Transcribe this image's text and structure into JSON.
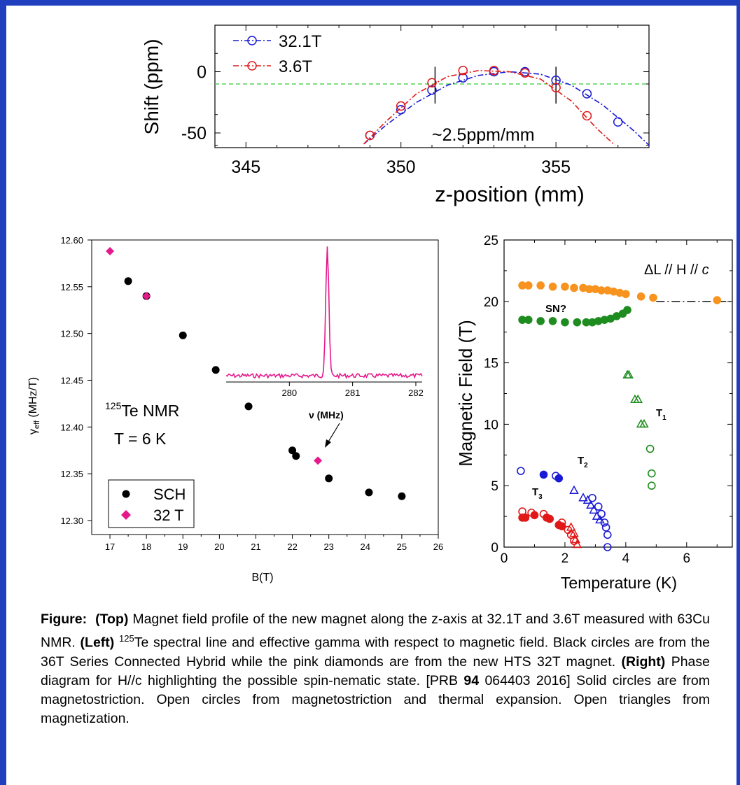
{
  "chart_data": [
    {
      "id": "top",
      "type": "line",
      "xlabel": "z-position (mm)",
      "ylabel": "Shift (ppm)",
      "xlim": [
        344,
        358
      ],
      "ylim": [
        -62,
        38
      ],
      "xticks": [
        345,
        350,
        355
      ],
      "yticks": [
        0,
        -50
      ],
      "reference_line": -10,
      "annotation": "~2.5ppm/mm",
      "gap_markers_x": [
        351.1,
        355.0
      ],
      "series": [
        {
          "name": "32.1T",
          "color": "#1a1ad6",
          "points": [
            [
              349,
              -52
            ],
            [
              350,
              -31
            ],
            [
              351,
              -15
            ],
            [
              352,
              -5
            ],
            [
              353,
              0
            ],
            [
              354,
              0
            ],
            [
              355,
              -7
            ],
            [
              356,
              -18
            ],
            [
              357,
              -41
            ]
          ],
          "fit": [
            [
              348.8,
              -59
            ],
            [
              349.5,
              -44
            ],
            [
              350.5,
              -25
            ],
            [
              351.5,
              -11
            ],
            [
              352.5,
              -3
            ],
            [
              353.5,
              0
            ],
            [
              354.5,
              -2
            ],
            [
              355.5,
              -11
            ],
            [
              356.5,
              -27
            ],
            [
              357.5,
              -48
            ],
            [
              358,
              -60
            ]
          ]
        },
        {
          "name": "3.6T",
          "color": "#e01818",
          "points": [
            [
              349,
              -52
            ],
            [
              350,
              -28
            ],
            [
              351,
              -9
            ],
            [
              352,
              1
            ],
            [
              353,
              1
            ],
            [
              354,
              -1
            ],
            [
              355,
              -13
            ],
            [
              356,
              -36
            ]
          ],
          "fit": [
            [
              348.8,
              -59
            ],
            [
              349.5,
              -41
            ],
            [
              350.5,
              -18
            ],
            [
              351.5,
              -4
            ],
            [
              352.5,
              1
            ],
            [
              353.5,
              0
            ],
            [
              354.5,
              -6
            ],
            [
              355.5,
              -24
            ],
            [
              356.3,
              -46
            ],
            [
              356.9,
              -60
            ]
          ]
        }
      ]
    },
    {
      "id": "left",
      "type": "scatter",
      "xlabel": "B(T)",
      "ylabel_main": "γ",
      "ylabel_sub": "eff",
      "ylabel_unit": " (MHz/T)",
      "xlim": [
        16.5,
        26
      ],
      "ylim": [
        12.285,
        12.6
      ],
      "xticks": [
        "17",
        "18",
        "19",
        "20",
        "21",
        "22",
        "23",
        "24",
        "25",
        "26"
      ],
      "yticks": [
        "12.30",
        "12.35",
        "12.40",
        "12.45",
        "12.50",
        "12.55",
        "12.60"
      ],
      "series": [
        {
          "name": "SCH",
          "marker": "circle",
          "color": "#000000",
          "points": [
            [
              17.5,
              12.556
            ],
            [
              18.0,
              12.54
            ],
            [
              19.0,
              12.498
            ],
            [
              19.9,
              12.461
            ],
            [
              20.8,
              12.422
            ],
            [
              22.0,
              12.375
            ],
            [
              22.1,
              12.369
            ],
            [
              23.0,
              12.345
            ],
            [
              24.1,
              12.33
            ],
            [
              25.0,
              12.326
            ]
          ]
        },
        {
          "name": "32 T",
          "marker": "diamond",
          "color": "#e6198c",
          "points": [
            [
              17.0,
              12.588
            ],
            [
              18.0,
              12.54
            ],
            [
              22.7,
              12.364
            ]
          ]
        }
      ],
      "text_label": {
        "superscript": "125",
        "line1": "Te NMR",
        "line2": "T = 6 K"
      },
      "inset": {
        "xlabel": "ν (MHz)",
        "xlim": [
          279,
          282.1
        ],
        "xticks": [
          "280",
          "281",
          "282"
        ],
        "peak_center": 280.6,
        "color": "#e6198c"
      }
    },
    {
      "id": "right",
      "type": "scatter",
      "xlabel": "Temperature (K)",
      "ylabel": "Magnetic Field (T)",
      "xlim": [
        0,
        7.5
      ],
      "ylim": [
        0,
        25
      ],
      "xticks": [
        "0",
        "2",
        "4",
        "6"
      ],
      "yticks": [
        "0",
        "5",
        "10",
        "15",
        "20",
        "25"
      ],
      "title_parts": {
        "prefix": "ΔL // H // ",
        "italic": "c"
      },
      "labels": {
        "sn": "SN?",
        "t1": "T",
        "t1_sub": "1",
        "t2": "T",
        "t2_sub": "2",
        "t3": "T",
        "t3_sub": "3"
      },
      "series": [
        {
          "name": "orange solid",
          "marker": "circle",
          "fill": true,
          "color": "#f7931e",
          "points": [
            [
              0.6,
              21.3
            ],
            [
              0.8,
              21.3
            ],
            [
              1.2,
              21.3
            ],
            [
              1.6,
              21.2
            ],
            [
              2.0,
              21.2
            ],
            [
              2.3,
              21.1
            ],
            [
              2.6,
              21.1
            ],
            [
              2.8,
              21.0
            ],
            [
              3.0,
              21.0
            ],
            [
              3.2,
              20.9
            ],
            [
              3.4,
              20.9
            ],
            [
              3.6,
              20.8
            ],
            [
              3.8,
              20.7
            ],
            [
              4.0,
              20.6
            ],
            [
              4.5,
              20.4
            ],
            [
              4.9,
              20.3
            ],
            [
              7.0,
              20.1
            ]
          ]
        },
        {
          "name": "green solid",
          "marker": "circle",
          "fill": true,
          "color": "#1e8c1e",
          "points": [
            [
              0.6,
              18.5
            ],
            [
              0.8,
              18.5
            ],
            [
              1.2,
              18.4
            ],
            [
              1.6,
              18.4
            ],
            [
              2.0,
              18.3
            ],
            [
              2.4,
              18.3
            ],
            [
              2.7,
              18.3
            ],
            [
              2.9,
              18.3
            ],
            [
              3.1,
              18.4
            ],
            [
              3.3,
              18.5
            ],
            [
              3.5,
              18.6
            ],
            [
              3.7,
              18.8
            ],
            [
              3.9,
              19.0
            ],
            [
              4.05,
              19.3
            ]
          ]
        },
        {
          "name": "green open circles",
          "marker": "circle",
          "fill": false,
          "color": "#1e8c1e",
          "points": [
            [
              4.8,
              8.0
            ],
            [
              4.85,
              6.0
            ],
            [
              4.85,
              5.0
            ]
          ]
        },
        {
          "name": "green open triangles",
          "marker": "triangle",
          "fill": false,
          "color": "#1e8c1e",
          "points": [
            [
              4.05,
              14
            ],
            [
              4.1,
              14
            ],
            [
              4.3,
              12
            ],
            [
              4.4,
              12
            ],
            [
              4.5,
              10
            ],
            [
              4.6,
              10
            ]
          ]
        },
        {
          "name": "blue solid",
          "marker": "circle",
          "fill": true,
          "color": "#1a1ad6",
          "points": [
            [
              1.3,
              5.9
            ],
            [
              1.8,
              5.6
            ]
          ]
        },
        {
          "name": "blue open circles",
          "marker": "circle",
          "fill": false,
          "color": "#1a1ad6",
          "points": [
            [
              0.55,
              6.2
            ],
            [
              1.7,
              5.8
            ],
            [
              2.9,
              4.0
            ],
            [
              3.1,
              3.3
            ],
            [
              3.2,
              2.7
            ],
            [
              3.3,
              2.0
            ],
            [
              3.35,
              1.6
            ],
            [
              3.4,
              1.0
            ],
            [
              3.4,
              0
            ]
          ]
        },
        {
          "name": "blue open triangles",
          "marker": "triangle",
          "fill": false,
          "color": "#1a1ad6",
          "points": [
            [
              2.3,
              4.6
            ],
            [
              2.6,
              4.0
            ],
            [
              2.75,
              3.8
            ],
            [
              2.85,
              3.4
            ],
            [
              2.95,
              3.0
            ],
            [
              3.05,
              2.5
            ],
            [
              3.15,
              2.2
            ]
          ]
        },
        {
          "name": "red solid",
          "marker": "circle",
          "fill": true,
          "color": "#e01818",
          "points": [
            [
              0.6,
              2.4
            ],
            [
              0.7,
              2.4
            ],
            [
              1.0,
              2.6
            ],
            [
              1.4,
              2.4
            ],
            [
              1.5,
              2.3
            ],
            [
              1.8,
              1.8
            ],
            [
              1.9,
              1.7
            ]
          ]
        },
        {
          "name": "red open circles",
          "marker": "circle",
          "fill": false,
          "color": "#e01818",
          "points": [
            [
              0.6,
              2.9
            ],
            [
              0.9,
              2.8
            ],
            [
              1.3,
              2.7
            ],
            [
              1.9,
              2.0
            ],
            [
              2.1,
              1.4
            ],
            [
              2.2,
              1.0
            ],
            [
              2.3,
              0.5
            ]
          ]
        },
        {
          "name": "red open triangles",
          "marker": "triangle",
          "fill": false,
          "color": "#e01818",
          "points": [
            [
              2.2,
              1.6
            ],
            [
              2.3,
              1.1
            ],
            [
              2.35,
              0.6
            ],
            [
              2.4,
              0.2
            ]
          ]
        }
      ],
      "dashdot_line": [
        [
          5.0,
          20.0
        ],
        [
          7.5,
          20.0
        ]
      ]
    }
  ],
  "caption": {
    "figure_label": "Figure:",
    "top_label": "(Top)",
    "top_text": " Magnet field profile of the new magnet along the z-axis at 32.1T and 3.6T measured with 63Cu NMR. ",
    "left_label": "(Left)",
    "left_sup": "125",
    "left_text": "Te spectral line and effective gamma with respect to magnetic field. Black circles are from the 36T Series Connected Hybrid while the pink diamonds are from the new HTS 32T magnet. ",
    "right_label": "(Right)",
    "right_text": " Phase diagram for H//c  highlighting the possible spin-nematic state. [PRB ",
    "right_bold": "94",
    "right_text2": " 064403 2016] Solid circles are from magnetostriction. Open circles from magnetostriction and thermal expansion. Open triangles from magnetization."
  }
}
